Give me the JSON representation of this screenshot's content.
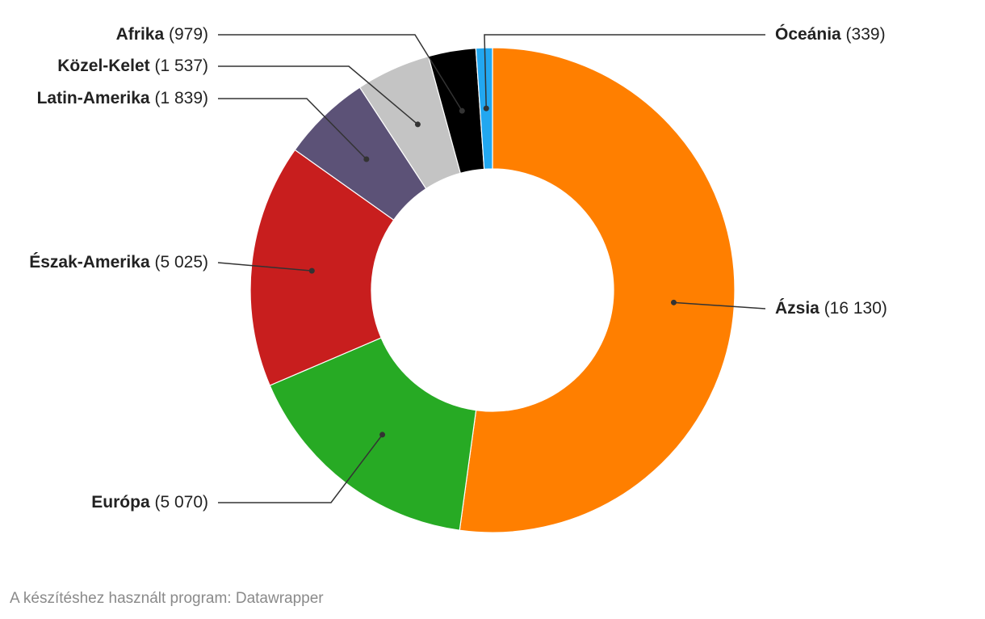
{
  "chart_data": {
    "type": "pie",
    "variant": "donut",
    "title": "",
    "slices": [
      {
        "label": "Ázsia",
        "value": 16130,
        "value_text": "16 130",
        "color": "#ff7f00"
      },
      {
        "label": "Európa",
        "value": 5070,
        "value_text": "5 070",
        "color": "#27aa24"
      },
      {
        "label": "Észak-Amerika",
        "value": 5025,
        "value_text": "5 025",
        "color": "#c81e1e"
      },
      {
        "label": "Latin-Amerika",
        "value": 1839,
        "value_text": "1 839",
        "color": "#5c5277"
      },
      {
        "label": "Közel-Kelet",
        "value": 1537,
        "value_text": "1 537",
        "color": "#c4c4c4"
      },
      {
        "label": "Afrika",
        "value": 979,
        "value_text": "979",
        "color": "#000000"
      },
      {
        "label": "Óceánia",
        "value": 339,
        "value_text": "339",
        "color": "#22a7f0"
      }
    ]
  },
  "footer": "A készítéshez használt program: Datawrapper"
}
